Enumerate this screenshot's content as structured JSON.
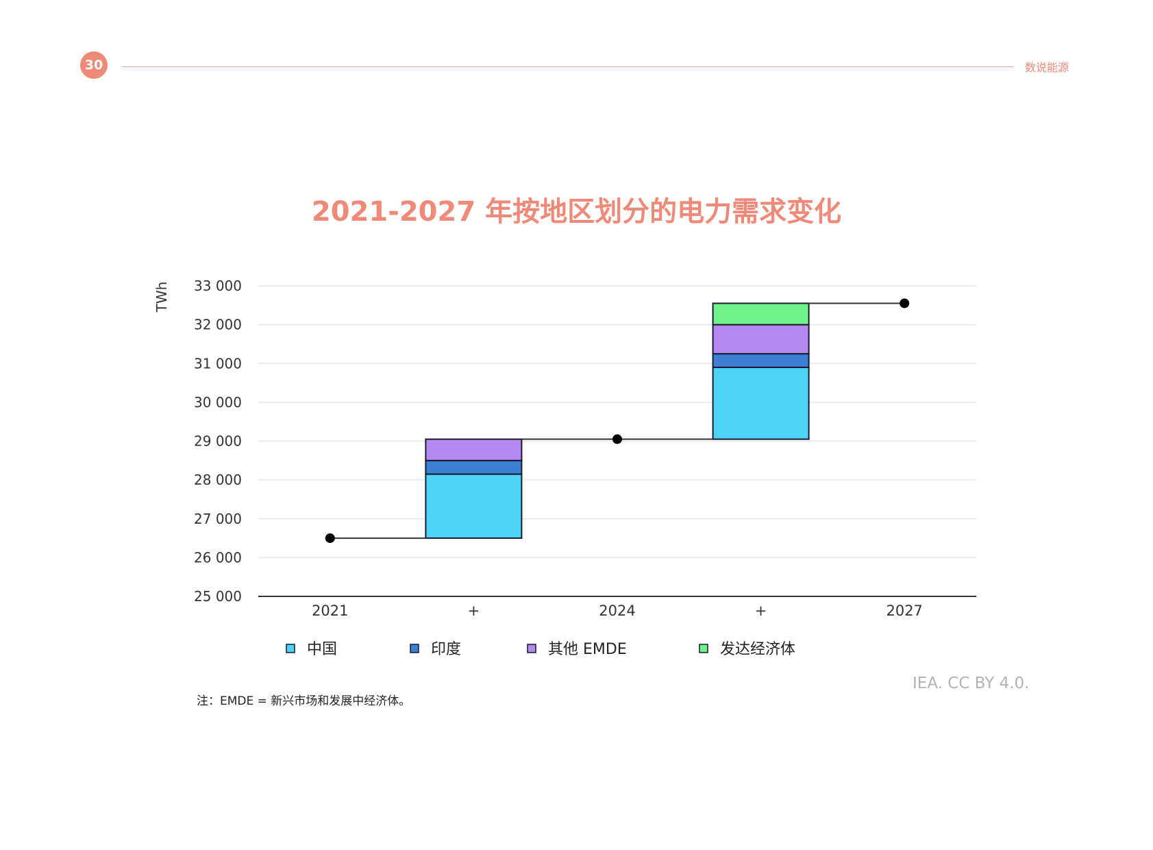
{
  "header": {
    "page_number": "30",
    "section_name": "数说能源",
    "accent_color": "#ef8a78"
  },
  "chart_data": {
    "type": "bar",
    "title": "2021-2027 年按地区划分的电力需求变化",
    "ylabel": "TWh",
    "xlabel": "",
    "ylim": [
      25000,
      33000
    ],
    "yticks": [
      25000,
      26000,
      27000,
      28000,
      29000,
      30000,
      31000,
      32000,
      33000
    ],
    "ytick_labels": [
      "25 000",
      "26 000",
      "27 000",
      "28 000",
      "29 000",
      "30 000",
      "31 000",
      "32 000",
      "33 000"
    ],
    "categories": [
      "2021",
      "+",
      "2024",
      "+",
      "2027"
    ],
    "totals": [
      {
        "category": "2021",
        "value": 26500
      },
      {
        "category": "2024",
        "value": 29050
      },
      {
        "category": "2027",
        "value": 32550
      }
    ],
    "series": [
      {
        "name": "中国",
        "color": "#4dd3f8",
        "values": [
          0,
          1650,
          0,
          1850,
          0
        ]
      },
      {
        "name": "印度",
        "color": "#3c7fd4",
        "values": [
          0,
          350,
          0,
          350,
          0
        ]
      },
      {
        "name": "其他 EMDE",
        "color": "#b389ef",
        "values": [
          0,
          550,
          0,
          750,
          0
        ]
      },
      {
        "name": "发达经济体",
        "color": "#6ef28c",
        "values": [
          0,
          0,
          0,
          550,
          0
        ]
      }
    ],
    "grid": true,
    "legend_position": "bottom"
  },
  "note": "注：EMDE = 新兴市场和发展中经济体。",
  "source": "IEA. CC BY 4.0."
}
